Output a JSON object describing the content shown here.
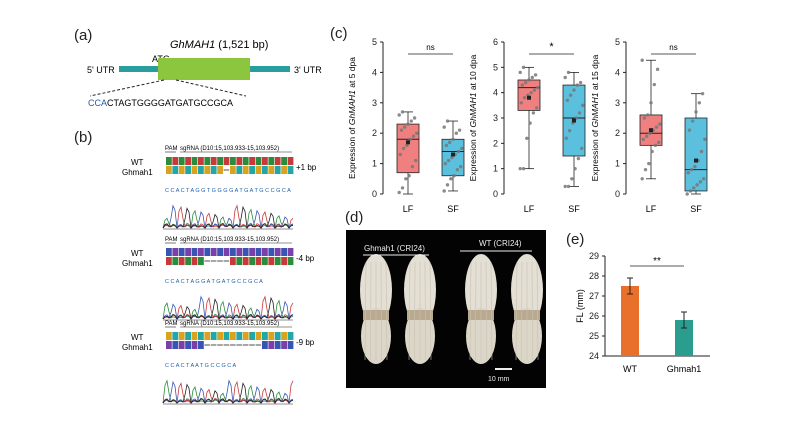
{
  "panel_a": {
    "label": "(a)",
    "gene": "GhMAH1",
    "length": " (1,521 bp)",
    "atg": "ATG",
    "utr5": "5' UTR",
    "utr3": "3' UTR",
    "pam_seq": "CCA",
    "target_seq": "CTAGTGGGGATGATGCCGCA",
    "colors": {
      "cds": "#8cc63f",
      "utr": "#2a9d9f",
      "pam": "#1f5fa8"
    }
  },
  "panel_b": {
    "label": "(b)",
    "rows": [
      {
        "wt": "WT",
        "mut": "Ghmah1",
        "pam": "PAM",
        "sgrna": "sgRNA (D10:15,103.933-15,103.952)",
        "edit": "+1 bp",
        "trace_seq": "C C A C T A G G T G G G G A T G A T G C C G C A"
      },
      {
        "wt": "WT",
        "mut": "Ghmah1",
        "pam": "PAM",
        "sgrna": "sgRNA (D10:15,103.933-15,103.952)",
        "edit": "-4 bp",
        "trace_seq": "C C A C T A G G A T G A T G C C G C A"
      },
      {
        "wt": "WT",
        "mut": "Ghmah1",
        "pam": "PAM",
        "sgrna": "sgRNA (D10:15,103.933-15,103.952)",
        "edit": "-9 bp",
        "trace_seq": "C C A C T A A T G C C G C A"
      }
    ]
  },
  "panel_c": {
    "label": "(c)",
    "chart_data": [
      {
        "type": "box",
        "ylabel_pre": "Expression of ",
        "ylabel_gene": "GhMAH1",
        "ylabel_post": " at 5 dpa",
        "categories": [
          "LF",
          "SF"
        ],
        "ylim": [
          0,
          5
        ],
        "yticks": [
          "0",
          "1",
          "2",
          "3",
          "4",
          "5"
        ],
        "significance": "ns",
        "boxes": [
          {
            "name": "LF",
            "min": 0.0,
            "q1": 0.7,
            "median": 1.8,
            "q3": 2.3,
            "max": 2.7,
            "mean": 1.7,
            "color": "#f08080",
            "points": [
              0.05,
              0.2,
              0.5,
              0.6,
              0.9,
              1.1,
              1.3,
              1.5,
              1.6,
              1.8,
              1.9,
              2.0,
              2.1,
              2.2,
              2.3,
              2.4,
              2.5,
              2.6,
              2.7
            ]
          },
          {
            "name": "SF",
            "min": 0.1,
            "q1": 0.6,
            "median": 1.4,
            "q3": 1.8,
            "max": 2.4,
            "mean": 1.3,
            "color": "#5bc0de",
            "points": [
              0.1,
              0.3,
              0.5,
              0.6,
              0.8,
              0.9,
              1.0,
              1.1,
              1.2,
              1.3,
              1.4,
              1.5,
              1.6,
              1.7,
              1.8,
              2.0,
              2.1,
              2.2,
              2.4
            ]
          }
        ]
      },
      {
        "type": "box",
        "ylabel_pre": "Expression of ",
        "ylabel_gene": "GhMAH1",
        "ylabel_post": " at 10 dpa",
        "categories": [
          "LF",
          "SF"
        ],
        "ylim": [
          0,
          6
        ],
        "yticks": [
          "0",
          "1",
          "2",
          "3",
          "4",
          "5",
          "6"
        ],
        "significance": "*",
        "boxes": [
          {
            "name": "LF",
            "min": 1.0,
            "q1": 3.3,
            "median": 4.2,
            "q3": 4.5,
            "max": 5.0,
            "mean": 3.8,
            "color": "#f08080",
            "points": [
              1.0,
              1.0,
              2.2,
              2.8,
              3.2,
              3.4,
              3.6,
              3.8,
              3.9,
              4.0,
              4.1,
              4.2,
              4.3,
              4.4,
              4.5,
              4.6,
              4.7,
              4.8,
              5.0
            ]
          },
          {
            "name": "SF",
            "min": 0.3,
            "q1": 1.5,
            "median": 3.0,
            "q3": 4.3,
            "max": 4.8,
            "mean": 2.9,
            "color": "#5bc0de",
            "points": [
              0.3,
              0.3,
              0.6,
              1.0,
              1.4,
              1.8,
              2.2,
              2.5,
              2.8,
              3.0,
              3.2,
              3.5,
              3.7,
              3.9,
              4.1,
              4.3,
              4.4,
              4.6,
              4.8
            ]
          }
        ]
      },
      {
        "type": "box",
        "ylabel_pre": "Expression of ",
        "ylabel_gene": "GhMAH1",
        "ylabel_post": " at 15 dpa",
        "categories": [
          "LF",
          "SF"
        ],
        "ylim": [
          0,
          5
        ],
        "yticks": [
          "0",
          "1",
          "2",
          "3",
          "4",
          "5"
        ],
        "significance": "ns",
        "boxes": [
          {
            "name": "LF",
            "min": 0.5,
            "q1": 1.6,
            "median": 2.0,
            "q3": 2.6,
            "max": 4.4,
            "mean": 2.1,
            "color": "#f08080",
            "points": [
              0.5,
              0.8,
              1.0,
              1.4,
              1.6,
              1.7,
              1.8,
              1.9,
              2.0,
              2.1,
              2.2,
              2.3,
              2.5,
              2.6,
              3.0,
              3.6,
              4.1,
              4.4
            ]
          },
          {
            "name": "SF",
            "min": 0.0,
            "q1": 0.1,
            "median": 0.8,
            "q3": 2.5,
            "max": 3.3,
            "mean": 1.1,
            "color": "#5bc0de",
            "points": [
              0.0,
              0.1,
              0.2,
              0.3,
              0.4,
              0.5,
              0.7,
              0.8,
              0.9,
              1.1,
              1.4,
              1.8,
              2.1,
              2.4,
              2.7,
              3.0,
              3.3
            ]
          }
        ]
      }
    ]
  },
  "panel_d": {
    "label": "(d)",
    "mutant_label": "Ghmah1 (CRI24)",
    "wt_label": "WT (CRI24)",
    "scale_bar": "10 mm"
  },
  "panel_e": {
    "label": "(e)",
    "chart_data": {
      "type": "bar",
      "categories": [
        "WT",
        "Ghmah1"
      ],
      "values": [
        27.5,
        25.8
      ],
      "errors": [
        0.4,
        0.4
      ],
      "colors": [
        "#e8702a",
        "#2a9d8f"
      ],
      "ylabel": "FL (mm)",
      "ylim": [
        24,
        29
      ],
      "yticks": [
        "24",
        "25",
        "26",
        "27",
        "28",
        "29"
      ],
      "significance": "**"
    }
  }
}
